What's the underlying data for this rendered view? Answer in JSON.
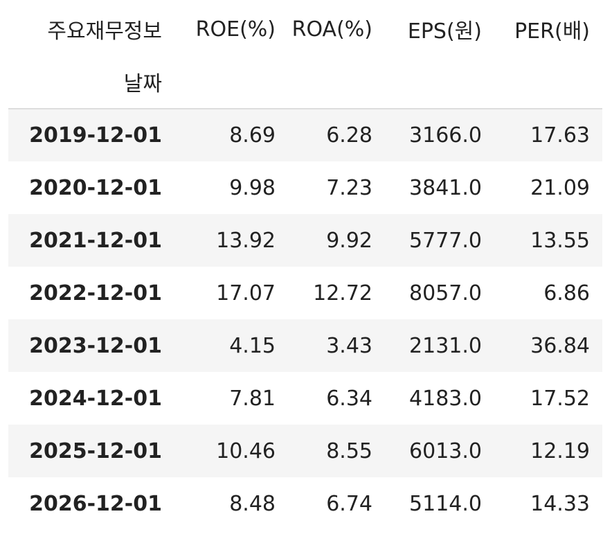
{
  "table": {
    "columns_label": "주요재무정보",
    "index_name": "날짜",
    "columns": [
      "ROE(%)",
      "ROA(%)",
      "EPS(원)",
      "PER(배)"
    ],
    "rows": [
      {
        "date": "2019-12-01",
        "values": [
          "8.69",
          "6.28",
          "3166.0",
          "17.63"
        ]
      },
      {
        "date": "2020-12-01",
        "values": [
          "9.98",
          "7.23",
          "3841.0",
          "21.09"
        ]
      },
      {
        "date": "2021-12-01",
        "values": [
          "13.92",
          "9.92",
          "5777.0",
          "13.55"
        ]
      },
      {
        "date": "2022-12-01",
        "values": [
          "17.07",
          "12.72",
          "8057.0",
          "6.86"
        ]
      },
      {
        "date": "2023-12-01",
        "values": [
          "4.15",
          "3.43",
          "2131.0",
          "36.84"
        ]
      },
      {
        "date": "2024-12-01",
        "values": [
          "7.81",
          "6.34",
          "4183.0",
          "17.52"
        ]
      },
      {
        "date": "2025-12-01",
        "values": [
          "10.46",
          "8.55",
          "6013.0",
          "12.19"
        ]
      },
      {
        "date": "2026-12-01",
        "values": [
          "8.48",
          "6.74",
          "5114.0",
          "14.33"
        ]
      }
    ]
  }
}
